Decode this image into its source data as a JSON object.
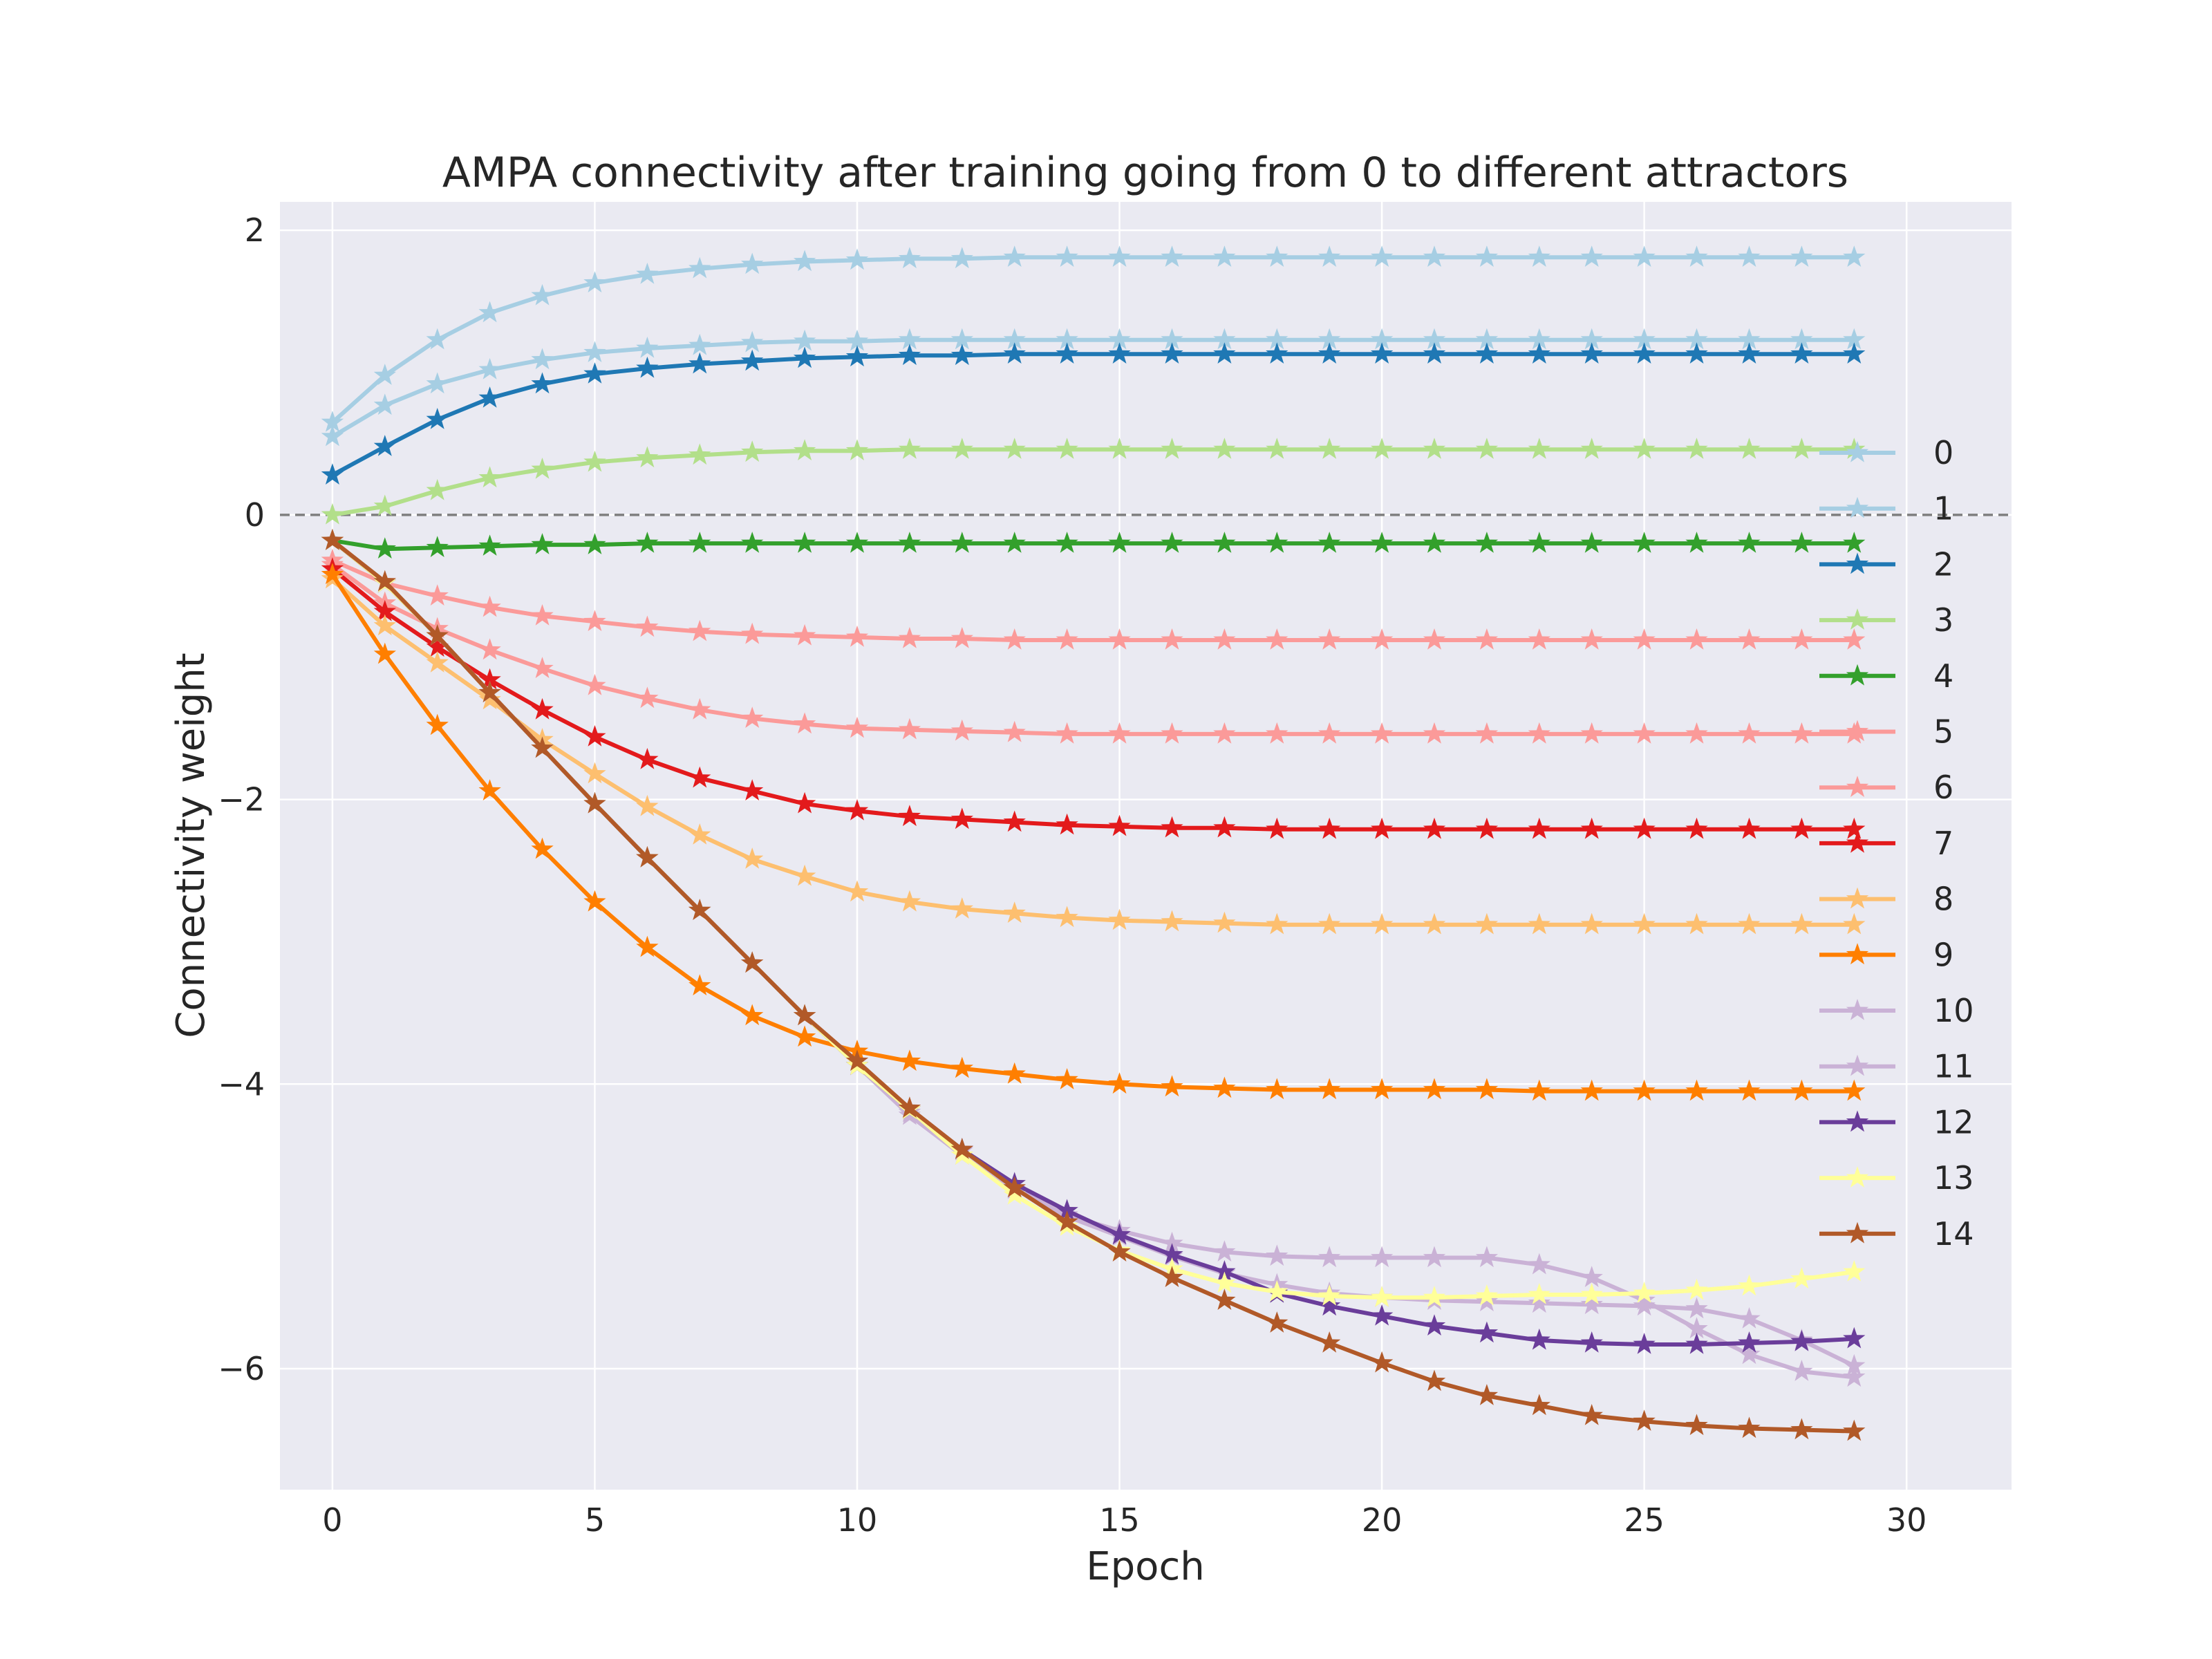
{
  "chart_data": {
    "type": "line",
    "title": "AMPA connectivity after training going from 0 to different attractors",
    "xlabel": "Epoch",
    "ylabel": "Connectivity weight",
    "xlim": [
      -1,
      32
    ],
    "ylim": [
      -6.85,
      2.2
    ],
    "xticks": [
      0,
      5,
      10,
      15,
      20,
      25,
      30
    ],
    "yticks": [
      2,
      0,
      -2,
      -4,
      -6
    ],
    "xtick_labels": [
      "0",
      "5",
      "10",
      "15",
      "20",
      "25",
      "30"
    ],
    "ytick_labels": [
      "2",
      "0",
      "−2",
      "−4",
      "−6"
    ],
    "grid": true,
    "reference_line_y": 0,
    "legend_position": "right",
    "marker": "star",
    "x": [
      0,
      1,
      2,
      3,
      4,
      5,
      6,
      7,
      8,
      9,
      10,
      11,
      12,
      13,
      14,
      15,
      16,
      17,
      18,
      19,
      20,
      21,
      22,
      23,
      24,
      25,
      26,
      27,
      28,
      29
    ],
    "series": [
      {
        "name": "0",
        "color": "#a6cee3",
        "values": [
          0.55,
          0.77,
          0.92,
          1.02,
          1.09,
          1.14,
          1.17,
          1.19,
          1.21,
          1.22,
          1.22,
          1.23,
          1.23,
          1.23,
          1.23,
          1.23,
          1.23,
          1.23,
          1.23,
          1.23,
          1.23,
          1.23,
          1.23,
          1.23,
          1.23,
          1.23,
          1.23,
          1.23,
          1.23,
          1.23
        ]
      },
      {
        "name": "1",
        "color": "#a6cee3",
        "values": [
          0.65,
          0.98,
          1.23,
          1.42,
          1.54,
          1.63,
          1.69,
          1.73,
          1.76,
          1.78,
          1.79,
          1.8,
          1.8,
          1.81,
          1.81,
          1.81,
          1.81,
          1.81,
          1.81,
          1.81,
          1.81,
          1.81,
          1.81,
          1.81,
          1.81,
          1.81,
          1.81,
          1.81,
          1.81,
          1.81
        ]
      },
      {
        "name": "2",
        "color": "#1f78b4",
        "values": [
          0.28,
          0.48,
          0.67,
          0.82,
          0.92,
          0.99,
          1.03,
          1.06,
          1.08,
          1.1,
          1.11,
          1.12,
          1.12,
          1.13,
          1.13,
          1.13,
          1.13,
          1.13,
          1.13,
          1.13,
          1.13,
          1.13,
          1.13,
          1.13,
          1.13,
          1.13,
          1.13,
          1.13,
          1.13,
          1.13
        ]
      },
      {
        "name": "3",
        "color": "#b2df8a",
        "values": [
          0.0,
          0.06,
          0.17,
          0.26,
          0.32,
          0.37,
          0.4,
          0.42,
          0.44,
          0.45,
          0.45,
          0.46,
          0.46,
          0.46,
          0.46,
          0.46,
          0.46,
          0.46,
          0.46,
          0.46,
          0.46,
          0.46,
          0.46,
          0.46,
          0.46,
          0.46,
          0.46,
          0.46,
          0.46,
          0.46
        ]
      },
      {
        "name": "4",
        "color": "#33a02c",
        "values": [
          -0.18,
          -0.24,
          -0.23,
          -0.22,
          -0.21,
          -0.21,
          -0.2,
          -0.2,
          -0.2,
          -0.2,
          -0.2,
          -0.2,
          -0.2,
          -0.2,
          -0.2,
          -0.2,
          -0.2,
          -0.2,
          -0.2,
          -0.2,
          -0.2,
          -0.2,
          -0.2,
          -0.2,
          -0.2,
          -0.2,
          -0.2,
          -0.2,
          -0.2,
          -0.2
        ]
      },
      {
        "name": "5",
        "color": "#fb9a99",
        "values": [
          -0.32,
          -0.48,
          -0.57,
          -0.65,
          -0.71,
          -0.75,
          -0.79,
          -0.82,
          -0.84,
          -0.85,
          -0.86,
          -0.87,
          -0.87,
          -0.88,
          -0.88,
          -0.88,
          -0.88,
          -0.88,
          -0.88,
          -0.88,
          -0.88,
          -0.88,
          -0.88,
          -0.88,
          -0.88,
          -0.88,
          -0.88,
          -0.88,
          -0.88,
          -0.88
        ]
      },
      {
        "name": "6",
        "color": "#fb9a99",
        "values": [
          -0.35,
          -0.62,
          -0.8,
          -0.95,
          -1.08,
          -1.2,
          -1.29,
          -1.37,
          -1.43,
          -1.47,
          -1.5,
          -1.51,
          -1.52,
          -1.53,
          -1.54,
          -1.54,
          -1.54,
          -1.54,
          -1.54,
          -1.54,
          -1.54,
          -1.54,
          -1.54,
          -1.54,
          -1.54,
          -1.54,
          -1.54,
          -1.54,
          -1.54,
          -1.54
        ]
      },
      {
        "name": "7",
        "color": "#e31a1c",
        "values": [
          -0.38,
          -0.68,
          -0.93,
          -1.16,
          -1.37,
          -1.56,
          -1.72,
          -1.85,
          -1.94,
          -2.03,
          -2.08,
          -2.12,
          -2.14,
          -2.16,
          -2.18,
          -2.19,
          -2.2,
          -2.2,
          -2.21,
          -2.21,
          -2.21,
          -2.21,
          -2.21,
          -2.21,
          -2.21,
          -2.21,
          -2.21,
          -2.21,
          -2.21,
          -2.21
        ]
      },
      {
        "name": "8",
        "color": "#fdbf6f",
        "values": [
          -0.45,
          -0.78,
          -1.04,
          -1.3,
          -1.58,
          -1.82,
          -2.05,
          -2.25,
          -2.42,
          -2.54,
          -2.65,
          -2.72,
          -2.77,
          -2.8,
          -2.83,
          -2.85,
          -2.86,
          -2.87,
          -2.88,
          -2.88,
          -2.88,
          -2.88,
          -2.88,
          -2.88,
          -2.88,
          -2.88,
          -2.88,
          -2.88,
          -2.88,
          -2.88
        ]
      },
      {
        "name": "9",
        "color": "#ff7f00",
        "values": [
          -0.42,
          -0.98,
          -1.48,
          -1.94,
          -2.35,
          -2.72,
          -3.04,
          -3.31,
          -3.52,
          -3.67,
          -3.77,
          -3.84,
          -3.89,
          -3.93,
          -3.97,
          -4.0,
          -4.02,
          -4.03,
          -4.04,
          -4.04,
          -4.04,
          -4.04,
          -4.04,
          -4.05,
          -4.05,
          -4.05,
          -4.05,
          -4.05,
          -4.05,
          -4.05
        ]
      },
      {
        "name": "10",
        "color": "#cab2d6",
        "values": [
          -0.18,
          -0.48,
          -0.85,
          -1.25,
          -1.64,
          -2.03,
          -2.41,
          -2.78,
          -3.15,
          -3.52,
          -3.87,
          -4.2,
          -4.47,
          -4.73,
          -4.92,
          -5.03,
          -5.12,
          -5.18,
          -5.21,
          -5.22,
          -5.22,
          -5.22,
          -5.22,
          -5.27,
          -5.36,
          -5.52,
          -5.72,
          -5.9,
          -6.02,
          -6.06
        ]
      },
      {
        "name": "11",
        "color": "#cab2d6",
        "values": [
          -0.18,
          -0.48,
          -0.85,
          -1.25,
          -1.64,
          -2.03,
          -2.41,
          -2.78,
          -3.15,
          -3.52,
          -3.87,
          -4.22,
          -4.5,
          -4.74,
          -4.93,
          -5.07,
          -5.21,
          -5.33,
          -5.41,
          -5.47,
          -5.5,
          -5.52,
          -5.53,
          -5.54,
          -5.55,
          -5.56,
          -5.58,
          -5.65,
          -5.8,
          -5.98
        ]
      },
      {
        "name": "12",
        "color": "#6a3d9a",
        "values": [
          -0.18,
          -0.48,
          -0.85,
          -1.25,
          -1.64,
          -2.03,
          -2.41,
          -2.78,
          -3.15,
          -3.52,
          -3.87,
          -4.18,
          -4.46,
          -4.7,
          -4.89,
          -5.06,
          -5.2,
          -5.32,
          -5.47,
          -5.56,
          -5.63,
          -5.7,
          -5.75,
          -5.8,
          -5.82,
          -5.83,
          -5.83,
          -5.82,
          -5.81,
          -5.79
        ]
      },
      {
        "name": "13",
        "color": "#ffff99",
        "values": [
          -0.18,
          -0.48,
          -0.85,
          -1.25,
          -1.64,
          -2.03,
          -2.41,
          -2.78,
          -3.15,
          -3.52,
          -3.87,
          -4.18,
          -4.5,
          -4.78,
          -5.0,
          -5.17,
          -5.3,
          -5.4,
          -5.46,
          -5.49,
          -5.5,
          -5.5,
          -5.49,
          -5.48,
          -5.48,
          -5.47,
          -5.45,
          -5.42,
          -5.37,
          -5.32
        ]
      },
      {
        "name": "14",
        "color": "#b15928",
        "values": [
          -0.18,
          -0.47,
          -0.85,
          -1.25,
          -1.64,
          -2.03,
          -2.41,
          -2.78,
          -3.15,
          -3.52,
          -3.84,
          -4.17,
          -4.46,
          -4.73,
          -4.97,
          -5.18,
          -5.36,
          -5.52,
          -5.68,
          -5.82,
          -5.96,
          -6.09,
          -6.19,
          -6.26,
          -6.33,
          -6.37,
          -6.4,
          -6.42,
          -6.43,
          -6.44
        ]
      }
    ]
  }
}
